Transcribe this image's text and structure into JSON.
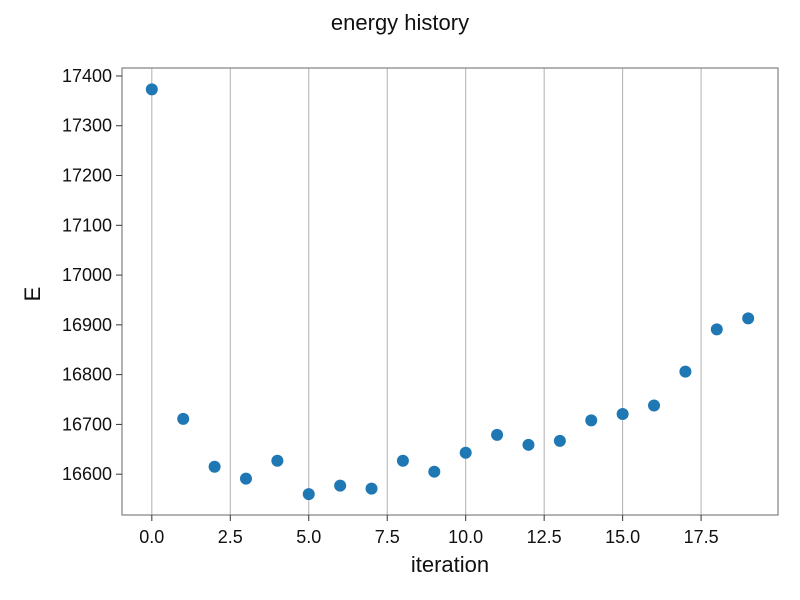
{
  "chart_data": {
    "type": "scatter",
    "title": "energy history",
    "xlabel": "iteration",
    "ylabel": "E",
    "x": [
      0,
      1,
      2,
      3,
      4,
      5,
      6,
      7,
      8,
      9,
      10,
      11,
      12,
      13,
      14,
      15,
      16,
      17,
      18,
      19
    ],
    "y": [
      17373,
      16711,
      16615,
      16591,
      16627,
      16560,
      16577,
      16571,
      16627,
      16605,
      16643,
      16679,
      16659,
      16667,
      16708,
      16721,
      16738,
      16806,
      16891,
      16913
    ],
    "xlim": [
      -0.95,
      19.95
    ],
    "ylim": [
      16518,
      17416
    ],
    "xticks": [
      0.0,
      2.5,
      5.0,
      7.5,
      10.0,
      12.5,
      15.0,
      17.5
    ],
    "xtick_labels": [
      "0.0",
      "2.5",
      "5.0",
      "7.5",
      "10.0",
      "12.5",
      "15.0",
      "17.5"
    ],
    "yticks": [
      16600,
      16700,
      16800,
      16900,
      17000,
      17100,
      17200,
      17300,
      17400
    ],
    "ytick_labels": [
      "16600",
      "16700",
      "16800",
      "16900",
      "17000",
      "17100",
      "17200",
      "17300",
      "17400"
    ],
    "grid": "vertical",
    "marker_color": "#1f77b4",
    "grid_color": "#b0b0b0",
    "frame_color": "#808080"
  }
}
